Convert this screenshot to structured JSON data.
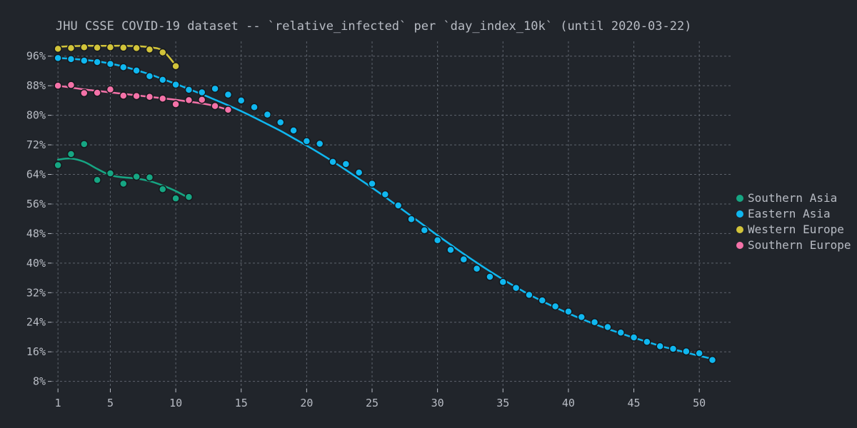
{
  "chart_data": {
    "type": "scatter",
    "title": "JHU CSSE COVID-19 dataset -- `relative_infected` per `day_index_10k` (until 2020-03-22)",
    "xlabel": "",
    "ylabel": "",
    "xlim": [
      0.5,
      52.5
    ],
    "ylim": [
      6,
      100
    ],
    "x_ticks": [
      1,
      5,
      10,
      15,
      20,
      25,
      30,
      35,
      40,
      45,
      50
    ],
    "y_ticks": [
      8,
      16,
      24,
      32,
      40,
      48,
      56,
      64,
      72,
      80,
      88,
      96
    ],
    "y_tick_labels": [
      "8%",
      "16%",
      "24%",
      "32%",
      "40%",
      "48%",
      "56%",
      "64%",
      "72%",
      "80%",
      "88%",
      "96%"
    ],
    "grid": true,
    "legend_position": "right",
    "series": [
      {
        "name": "Southern Asia",
        "color": "#16a683",
        "x": [
          1,
          2,
          3,
          4,
          5,
          6,
          7,
          8,
          9,
          10,
          11
        ],
        "y": [
          66.5,
          69.5,
          72.2,
          62.5,
          64.3,
          61.5,
          63.4,
          63.2,
          60.0,
          57.5,
          57.9
        ],
        "trend": [
          68,
          68.3,
          67.4,
          65.5,
          63.8,
          63.2,
          62.9,
          62.2,
          61.0,
          59.5,
          57.6
        ]
      },
      {
        "name": "Eastern Asia",
        "color": "#0fb7f0",
        "x": [
          1,
          2,
          3,
          4,
          5,
          6,
          7,
          8,
          9,
          10,
          11,
          12,
          13,
          14,
          15,
          16,
          17,
          18,
          19,
          20,
          21,
          22,
          23,
          24,
          25,
          26,
          27,
          28,
          29,
          30,
          31,
          32,
          33,
          34,
          35,
          36,
          37,
          38,
          39,
          40,
          41,
          42,
          43,
          44,
          45,
          46,
          47,
          48,
          49,
          50,
          51
        ],
        "y": [
          95.5,
          95.2,
          94.8,
          94.4,
          93.9,
          93.0,
          92.1,
          90.6,
          89.6,
          88.3,
          86.9,
          86.2,
          87.2,
          85.6,
          84.0,
          82.2,
          80.2,
          78.1,
          75.9,
          73.0,
          72.3,
          67.4,
          66.8,
          64.5,
          61.5,
          58.6,
          55.6,
          51.9,
          48.9,
          46.2,
          43.6,
          41.0,
          38.5,
          36.3,
          34.9,
          33.3,
          31.4,
          29.9,
          28.3,
          26.9,
          25.4,
          24.0,
          22.7,
          21.2,
          19.9,
          18.7,
          17.5,
          16.8,
          16.1,
          15.6,
          13.8
        ],
        "trend": [
          95.5,
          95.3,
          95.0,
          94.6,
          94.0,
          93.2,
          92.2,
          91.1,
          89.8,
          88.5,
          87.1,
          85.7,
          84.2,
          82.7,
          81.1,
          79.4,
          77.6,
          75.8,
          73.8,
          71.8,
          69.7,
          67.5,
          65.2,
          62.8,
          60.4,
          57.9,
          55.3,
          52.7,
          50.1,
          47.5,
          45.0,
          42.5,
          40.1,
          37.8,
          35.6,
          33.5,
          31.5,
          29.7,
          28.0,
          26.4,
          24.9,
          23.5,
          22.2,
          21.0,
          19.8,
          18.7,
          17.6,
          16.7,
          15.8,
          14.9,
          14.1
        ]
      },
      {
        "name": "Western Europe",
        "color": "#d2c43a",
        "x": [
          1,
          2,
          3,
          4,
          5,
          6,
          7,
          8,
          9,
          10
        ],
        "y": [
          98.0,
          98.2,
          98.4,
          98.3,
          98.4,
          98.3,
          98.2,
          97.8,
          97.0,
          93.3
        ],
        "trend": [
          98.5,
          98.7,
          98.8,
          98.8,
          98.8,
          98.8,
          98.7,
          98.4,
          97.5,
          93.5
        ]
      },
      {
        "name": "Southern Europe",
        "color": "#f472a8",
        "x": [
          1,
          2,
          3,
          4,
          5,
          6,
          7,
          8,
          9,
          10,
          11,
          12,
          13,
          14
        ],
        "y": [
          88.0,
          88.2,
          86.0,
          86.1,
          87.0,
          85.3,
          85.2,
          85.0,
          84.5,
          83.0,
          84.1,
          84.2,
          82.5,
          81.5
        ],
        "trend": [
          88.0,
          87.5,
          87.0,
          86.6,
          86.2,
          85.8,
          85.4,
          85.0,
          84.6,
          84.2,
          83.7,
          83.2,
          82.5,
          81.5
        ]
      }
    ]
  }
}
